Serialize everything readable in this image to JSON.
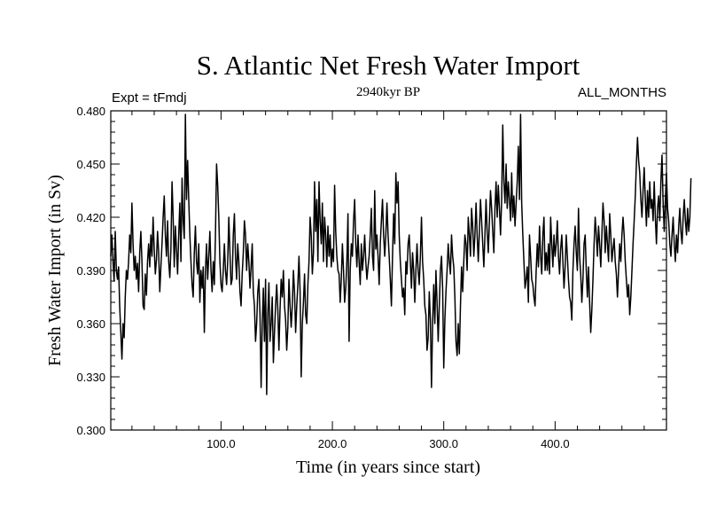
{
  "chart_data": {
    "type": "line",
    "title": "S. Atlantic Net Fresh Water Import",
    "subtitle": "2940kyr BP",
    "left_label": "Expt = tFmdj",
    "right_label": "ALL_MONTHS",
    "xlabel": "Time (in years since start)",
    "ylabel": "Fresh Water Import (in Sv)",
    "xlim": [
      1,
      500
    ],
    "ylim": [
      0.3,
      0.48
    ],
    "x_ticks": [
      100,
      200,
      300,
      400
    ],
    "x_tick_labels": [
      "100.0",
      "200.0",
      "300.0",
      "400.0"
    ],
    "y_ticks": [
      0.3,
      0.33,
      0.36,
      0.39,
      0.42,
      0.45,
      0.48
    ],
    "y_tick_labels": [
      "0.300",
      "0.330",
      "0.360",
      "0.390",
      "0.420",
      "0.450",
      "0.480"
    ],
    "grid": false,
    "series": [
      {
        "name": "Net Fresh Water Import",
        "x_start": 1,
        "x_step": 1,
        "values": [
          0.398,
          0.41,
          0.395,
          0.384,
          0.412,
          0.39,
          0.385,
          0.392,
          0.37,
          0.355,
          0.34,
          0.36,
          0.352,
          0.375,
          0.39,
          0.385,
          0.395,
          0.41,
          0.4,
          0.428,
          0.405,
          0.39,
          0.398,
          0.385,
          0.394,
          0.378,
          0.4,
          0.412,
          0.395,
          0.37,
          0.368,
          0.388,
          0.376,
          0.395,
          0.405,
          0.392,
          0.41,
          0.398,
          0.42,
          0.402,
          0.388,
          0.396,
          0.412,
          0.4,
          0.378,
          0.392,
          0.405,
          0.42,
          0.432,
          0.41,
          0.398,
          0.418,
          0.395,
          0.386,
          0.402,
          0.44,
          0.42,
          0.392,
          0.415,
          0.402,
          0.388,
          0.41,
          0.428,
          0.395,
          0.442,
          0.418,
          0.408,
          0.478,
          0.43,
          0.452,
          0.43,
          0.41,
          0.395,
          0.382,
          0.375,
          0.4,
          0.415,
          0.395,
          0.388,
          0.405,
          0.372,
          0.39,
          0.38,
          0.392,
          0.355,
          0.39,
          0.405,
          0.385,
          0.398,
          0.412,
          0.39,
          0.378,
          0.395,
          0.382,
          0.41,
          0.45,
          0.438,
          0.42,
          0.395,
          0.382,
          0.378,
          0.39,
          0.405,
          0.39,
          0.382,
          0.395,
          0.42,
          0.4,
          0.382,
          0.385,
          0.41,
          0.422,
          0.398,
          0.385,
          0.405,
          0.395,
          0.378,
          0.37,
          0.388,
          0.4,
          0.418,
          0.41,
          0.39,
          0.405,
          0.395,
          0.38,
          0.392,
          0.405,
          0.378,
          0.37,
          0.35,
          0.36,
          0.378,
          0.385,
          0.365,
          0.324,
          0.36,
          0.38,
          0.35,
          0.385,
          0.32,
          0.365,
          0.383,
          0.35,
          0.36,
          0.375,
          0.338,
          0.355,
          0.37,
          0.382,
          0.368,
          0.345,
          0.368,
          0.385,
          0.375,
          0.39,
          0.37,
          0.362,
          0.345,
          0.358,
          0.385,
          0.37,
          0.358,
          0.37,
          0.39,
          0.378,
          0.355,
          0.37,
          0.382,
          0.398,
          0.378,
          0.33,
          0.36,
          0.372,
          0.388,
          0.365,
          0.36,
          0.382,
          0.395,
          0.42,
          0.41,
          0.388,
          0.4,
          0.44,
          0.412,
          0.43,
          0.395,
          0.44,
          0.418,
          0.405,
          0.428,
          0.395,
          0.42,
          0.41,
          0.392,
          0.415,
          0.398,
          0.41,
          0.392,
          0.402,
          0.395,
          0.438,
          0.412,
          0.398,
          0.39,
          0.388,
          0.372,
          0.385,
          0.405,
          0.39,
          0.372,
          0.38,
          0.395,
          0.422,
          0.35,
          0.39,
          0.405,
          0.398,
          0.418,
          0.43,
          0.405,
          0.392,
          0.41,
          0.395,
          0.382,
          0.405,
          0.39,
          0.398,
          0.41,
          0.395,
          0.385,
          0.392,
          0.398,
          0.41,
          0.425,
          0.398,
          0.39,
          0.435,
          0.402,
          0.41,
          0.398,
          0.382,
          0.405,
          0.418,
          0.43,
          0.41,
          0.398,
          0.41,
          0.428,
          0.41,
          0.398,
          0.385,
          0.37,
          0.398,
          0.422,
          0.405,
          0.445,
          0.428,
          0.44,
          0.41,
          0.395,
          0.385,
          0.375,
          0.38,
          0.365,
          0.395,
          0.388,
          0.405,
          0.41,
          0.395,
          0.38,
          0.4,
          0.39,
          0.372,
          0.39,
          0.405,
          0.39,
          0.382,
          0.398,
          0.42,
          0.395,
          0.385,
          0.37,
          0.365,
          0.345,
          0.352,
          0.378,
          0.362,
          0.324,
          0.36,
          0.382,
          0.36,
          0.39,
          0.372,
          0.35,
          0.37,
          0.39,
          0.398,
          0.38,
          0.335,
          0.362,
          0.378,
          0.39,
          0.405,
          0.395,
          0.388,
          0.41,
          0.398,
          0.392,
          0.375,
          0.35,
          0.342,
          0.36,
          0.343,
          0.37,
          0.392,
          0.378,
          0.395,
          0.41,
          0.405,
          0.39,
          0.42,
          0.41,
          0.398,
          0.425,
          0.415,
          0.398,
          0.41,
          0.428,
          0.41,
          0.395,
          0.412,
          0.43,
          0.418,
          0.405,
          0.392,
          0.41,
          0.43,
          0.412,
          0.4,
          0.418,
          0.435,
          0.425,
          0.412,
          0.4,
          0.425,
          0.44,
          0.42,
          0.438,
          0.425,
          0.41,
          0.43,
          0.472,
          0.44,
          0.428,
          0.45,
          0.425,
          0.44,
          0.43,
          0.418,
          0.445,
          0.42,
          0.432,
          0.415,
          0.428,
          0.44,
          0.46,
          0.43,
          0.478,
          0.428,
          0.41,
          0.395,
          0.38,
          0.385,
          0.392,
          0.372,
          0.41,
          0.398,
          0.385,
          0.382,
          0.375,
          0.37,
          0.39,
          0.405,
          0.392,
          0.415,
          0.398,
          0.388,
          0.41,
          0.42,
          0.39,
          0.4,
          0.39,
          0.405,
          0.388,
          0.42,
          0.405,
          0.392,
          0.41,
          0.398,
          0.405,
          0.418,
          0.398,
          0.388,
          0.402,
          0.41,
          0.395,
          0.38,
          0.392,
          0.41,
          0.398,
          0.385,
          0.375,
          0.372,
          0.362,
          0.39,
          0.405,
          0.415,
          0.4,
          0.39,
          0.425,
          0.398,
          0.388,
          0.372,
          0.385,
          0.405,
          0.41,
          0.39,
          0.375,
          0.392,
          0.372,
          0.355,
          0.368,
          0.385,
          0.405,
          0.42,
          0.41,
          0.398,
          0.415,
          0.405,
          0.392,
          0.41,
          0.428,
          0.418,
          0.4,
          0.415,
          0.405,
          0.395,
          0.422,
          0.41,
          0.395,
          0.402,
          0.408,
          0.395,
          0.388,
          0.375,
          0.39,
          0.405,
          0.395,
          0.41,
          0.42,
          0.41,
          0.395,
          0.385,
          0.375,
          0.382,
          0.365,
          0.375,
          0.39,
          0.405,
          0.418,
          0.432,
          0.45,
          0.465,
          0.452,
          0.445,
          0.43,
          0.42,
          0.435,
          0.448,
          0.43,
          0.415,
          0.435,
          0.42,
          0.44,
          0.425,
          0.43,
          0.418,
          0.44,
          0.42,
          0.405,
          0.425,
          0.432,
          0.418,
          0.44,
          0.455,
          0.428,
          0.412,
          0.43,
          0.445,
          0.425,
          0.418,
          0.405,
          0.398,
          0.41,
          0.42,
          0.405,
          0.395,
          0.41,
          0.4,
          0.415,
          0.425,
          0.412,
          0.405,
          0.42,
          0.43,
          0.418,
          0.41,
          0.425,
          0.412,
          0.42,
          0.442
        ]
      }
    ]
  }
}
